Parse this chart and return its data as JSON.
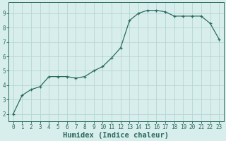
{
  "x": [
    0,
    1,
    2,
    3,
    4,
    5,
    6,
    7,
    8,
    9,
    10,
    11,
    12,
    13,
    14,
    15,
    16,
    17,
    18,
    19,
    20,
    21,
    22,
    23
  ],
  "y": [
    2.0,
    3.3,
    3.7,
    3.9,
    4.6,
    4.6,
    4.6,
    4.5,
    4.6,
    5.0,
    5.3,
    5.9,
    6.6,
    8.5,
    9.0,
    9.2,
    9.2,
    9.1,
    8.8,
    8.8,
    8.8,
    8.8,
    8.3,
    7.2
  ],
  "xlabel": "Humidex (Indice chaleur)",
  "xlim": [
    -0.5,
    23.5
  ],
  "ylim": [
    1.5,
    9.75
  ],
  "yticks": [
    2,
    3,
    4,
    5,
    6,
    7,
    8,
    9
  ],
  "xticks": [
    0,
    1,
    2,
    3,
    4,
    5,
    6,
    7,
    8,
    9,
    10,
    11,
    12,
    13,
    14,
    15,
    16,
    17,
    18,
    19,
    20,
    21,
    22,
    23
  ],
  "line_color": "#2a6b60",
  "marker": "+",
  "bg_color": "#d8eeec",
  "grid_color": "#b5d5d0",
  "tick_label_fontsize": 5.5,
  "xlabel_fontsize": 7.5,
  "xlabel_fontweight": "bold"
}
